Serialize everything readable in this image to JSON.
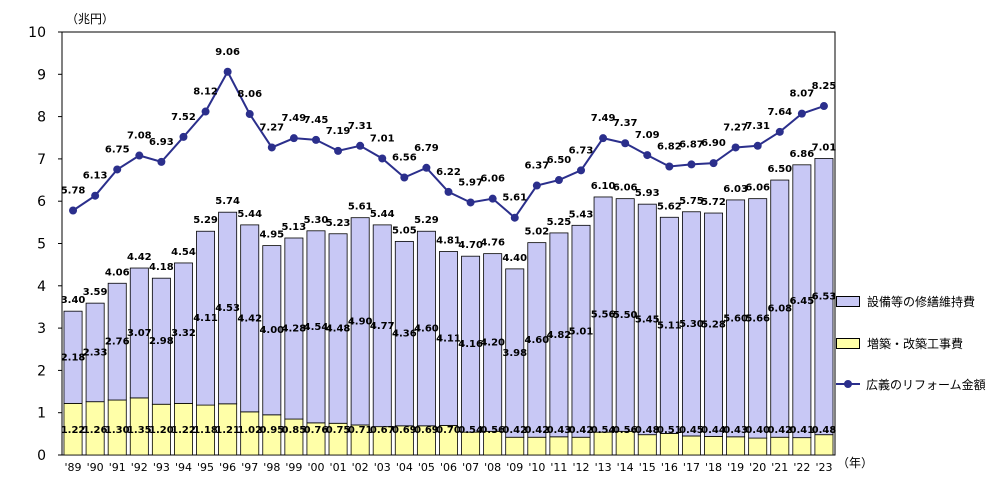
{
  "chart_data": {
    "type": "bar+line",
    "stacked": true,
    "unit_label": "（兆円）",
    "x_unit_label": "（年）",
    "categories": [
      "'89",
      "'90",
      "'91",
      "'92",
      "'93",
      "'94",
      "'95",
      "'96",
      "'97",
      "'98",
      "'99",
      "'00",
      "'01",
      "'02",
      "'03",
      "'04",
      "'05",
      "'06",
      "'07",
      "'08",
      "'09",
      "'10",
      "'11",
      "'12",
      "'13",
      "'14",
      "'15",
      "'16",
      "'17",
      "'18",
      "'19",
      "'20",
      "'21",
      "'22",
      "'23"
    ],
    "series": [
      {
        "name": "増築・改築工事費",
        "kind": "bar",
        "color": "#ffffa8",
        "values": [
          1.22,
          1.26,
          1.3,
          1.35,
          1.2,
          1.22,
          1.18,
          1.21,
          1.02,
          0.95,
          0.85,
          0.76,
          0.75,
          0.71,
          0.67,
          0.69,
          0.69,
          0.7,
          0.54,
          0.56,
          0.42,
          0.42,
          0.43,
          0.42,
          0.54,
          0.56,
          0.48,
          0.51,
          0.45,
          0.44,
          0.43,
          0.4,
          0.42,
          0.41,
          0.48
        ],
        "labels": [
          "1.22",
          "1.26",
          "1.30",
          "1.35",
          "1.20",
          "1.22",
          "1.18",
          "1.21",
          "1.02",
          "0.95",
          "0.85",
          "0.76",
          "0.75",
          "0.71",
          "0.67",
          "0.69",
          "0.69",
          "0.70",
          "0.54",
          "0.56",
          "0.42",
          "0.42",
          "0.43",
          "0.42",
          "0.54",
          "0.56",
          "0.48",
          "0.51",
          "0.45",
          "0.44",
          "0.43",
          "0.40",
          "0.42",
          "0.41",
          "0.48"
        ]
      },
      {
        "name": "設備等の修繕維持費",
        "kind": "bar",
        "color": "#c8c8f5",
        "values": [
          2.18,
          2.33,
          2.76,
          3.07,
          2.98,
          3.32,
          4.11,
          4.53,
          4.42,
          4.0,
          4.28,
          4.54,
          4.48,
          4.9,
          4.77,
          4.36,
          4.6,
          4.11,
          4.16,
          4.2,
          3.98,
          4.6,
          4.82,
          5.01,
          5.56,
          5.5,
          5.45,
          5.11,
          5.3,
          5.28,
          5.6,
          5.66,
          6.08,
          6.45,
          6.53
        ],
        "labels": [
          "2.18",
          "2.33",
          "2.76",
          "3.07",
          "2.98",
          "3.32",
          "4.11",
          "4.53",
          "4.42",
          "4.00",
          "4.28",
          "4.54",
          "4.48",
          "4.90",
          "4.77",
          "4.36",
          "4.60",
          "4.11",
          "4.16",
          "4.20",
          "3.98",
          "4.60",
          "4.82",
          "5.01",
          "5.56",
          "5.50",
          "5.45",
          "5.11",
          "5.30",
          "5.28",
          "5.60",
          "5.66",
          "6.08",
          "6.45",
          "6.53"
        ]
      },
      {
        "name": "広義のリフォーム金額",
        "kind": "line",
        "color": "#2b2f8c",
        "values": [
          5.78,
          6.13,
          6.75,
          7.08,
          6.93,
          7.52,
          8.12,
          9.06,
          8.06,
          7.27,
          7.49,
          7.45,
          7.19,
          7.31,
          7.01,
          6.56,
          6.79,
          6.22,
          5.97,
          6.06,
          5.61,
          6.37,
          6.5,
          6.73,
          7.49,
          7.37,
          7.09,
          6.82,
          6.87,
          6.9,
          7.27,
          7.31,
          7.64,
          8.07,
          8.25
        ],
        "labels": [
          "5.78",
          "6.13",
          "6.75",
          "7.08",
          "6.93",
          "7.52",
          "8.12",
          "9.06",
          "8.06",
          "7.27",
          "7.49",
          "7.45",
          "7.19",
          "7.31",
          "7.01",
          "6.56",
          "6.79",
          "6.22",
          "5.97",
          "6.06",
          "5.61",
          "6.37",
          "6.50",
          "6.73",
          "7.49",
          "7.37",
          "7.09",
          "6.82",
          "6.87",
          "6.90",
          "7.27",
          "7.31",
          "7.64",
          "8.07",
          "8.25"
        ]
      }
    ],
    "bar_totals": [
      3.4,
      3.59,
      4.06,
      4.42,
      4.18,
      4.54,
      5.29,
      5.74,
      5.44,
      4.95,
      5.13,
      5.3,
      5.23,
      5.61,
      5.44,
      5.05,
      5.29,
      4.81,
      4.7,
      4.76,
      4.4,
      5.02,
      5.25,
      5.43,
      6.1,
      6.06,
      5.93,
      5.62,
      5.75,
      5.72,
      6.03,
      6.06,
      6.5,
      6.86,
      7.01
    ],
    "bar_total_labels": [
      "3.40",
      "3.59",
      "4.06",
      "4.42",
      "4.18",
      "4.54",
      "5.29",
      "5.74",
      "5.44",
      "4.95",
      "5.13",
      "5.30",
      "5.23",
      "5.61",
      "5.44",
      "5.05",
      "5.29",
      "4.81",
      "4.70",
      "4.76",
      "4.40",
      "5.02",
      "5.25",
      "5.43",
      "6.10",
      "6.06",
      "5.93",
      "5.62",
      "5.75",
      "5.72",
      "6.03",
      "6.06",
      "6.50",
      "6.86",
      "7.01"
    ],
    "ylim": [
      0,
      10
    ],
    "yticks": [
      0,
      1,
      2,
      3,
      4,
      5,
      6,
      7,
      8,
      9,
      10
    ],
    "legend": [
      {
        "label": "設備等の修繕維持費",
        "kind": "bar",
        "color": "#c8c8f5"
      },
      {
        "label": "増築・改築工事費",
        "kind": "bar",
        "color": "#ffffa8"
      },
      {
        "label": "広義のリフォーム金額",
        "kind": "line",
        "color": "#2b2f8c"
      }
    ],
    "legend_position": "right",
    "grid": false
  }
}
